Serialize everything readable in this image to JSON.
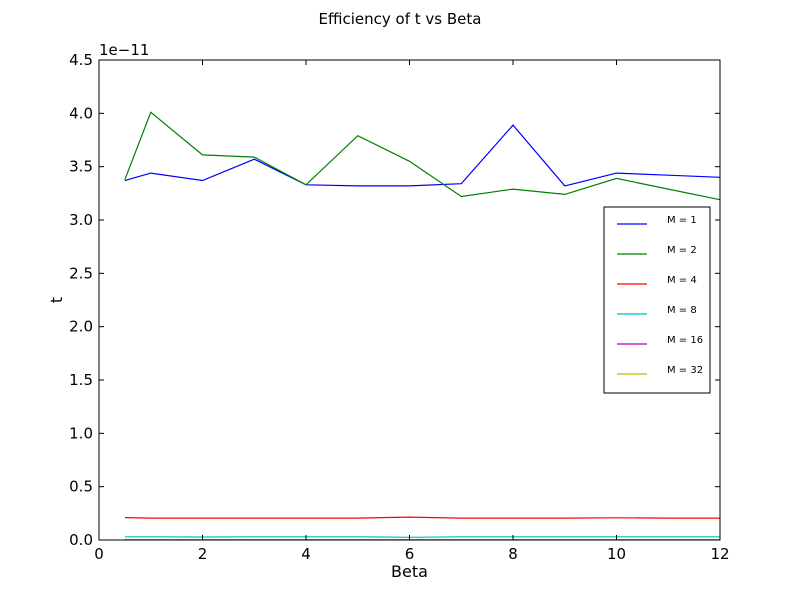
{
  "chart_data": {
    "type": "line",
    "title": "Efficiency of t vs Beta",
    "xlabel": "Beta",
    "ylabel": "t",
    "y_offset_text": "1e−11",
    "xlim": [
      0,
      12
    ],
    "ylim": [
      0,
      4.5
    ],
    "xticks": [
      0,
      2,
      4,
      6,
      8,
      10,
      12
    ],
    "yticks": [
      0.0,
      0.5,
      1.0,
      1.5,
      2.0,
      2.5,
      3.0,
      3.5,
      4.0,
      4.5
    ],
    "xtick_labels": [
      "0",
      "2",
      "4",
      "6",
      "8",
      "10",
      "12"
    ],
    "ytick_labels": [
      "0.0",
      "0.5",
      "1.0",
      "1.5",
      "2.0",
      "2.5",
      "3.0",
      "3.5",
      "4.0",
      "4.5"
    ],
    "legend_position": "right",
    "grid": false,
    "x": [
      0.5,
      1,
      2,
      3,
      4,
      5,
      6,
      7,
      8,
      9,
      10,
      11,
      12
    ],
    "series": [
      {
        "name": "M = 1",
        "color": "#0000ff",
        "values": [
          3.37,
          3.44,
          3.37,
          3.57,
          3.33,
          3.32,
          3.32,
          3.34,
          3.89,
          3.32,
          3.44,
          3.42,
          3.4
        ]
      },
      {
        "name": "M = 2",
        "color": "#008000",
        "values": [
          3.38,
          4.01,
          3.61,
          3.59,
          3.33,
          3.79,
          3.55,
          3.22,
          3.29,
          3.24,
          3.39,
          3.29,
          3.19
        ]
      },
      {
        "name": "M = 4",
        "color": "#ff0000",
        "values": [
          0.21,
          0.205,
          0.205,
          0.205,
          0.205,
          0.205,
          0.215,
          0.205,
          0.205,
          0.205,
          0.208,
          0.205,
          0.205
        ]
      },
      {
        "name": "M = 8",
        "color": "#00bfbf",
        "values": [
          0.03,
          0.03,
          0.028,
          0.03,
          0.03,
          0.03,
          0.025,
          0.03,
          0.03,
          0.03,
          0.03,
          0.03,
          0.03
        ]
      },
      {
        "name": "M = 16",
        "color": "#bf00bf",
        "values": [
          0.002,
          0.002,
          0.002,
          0.002,
          0.002,
          0.002,
          0.002,
          0.002,
          0.002,
          0.002,
          0.002,
          0.002,
          0.002
        ]
      },
      {
        "name": "M = 32",
        "color": "#bfbf00",
        "values": [
          0.001,
          0.001,
          0.001,
          0.001,
          0.001,
          0.001,
          0.001,
          0.001,
          0.001,
          0.001,
          0.001,
          0.001,
          0.001
        ]
      }
    ]
  }
}
